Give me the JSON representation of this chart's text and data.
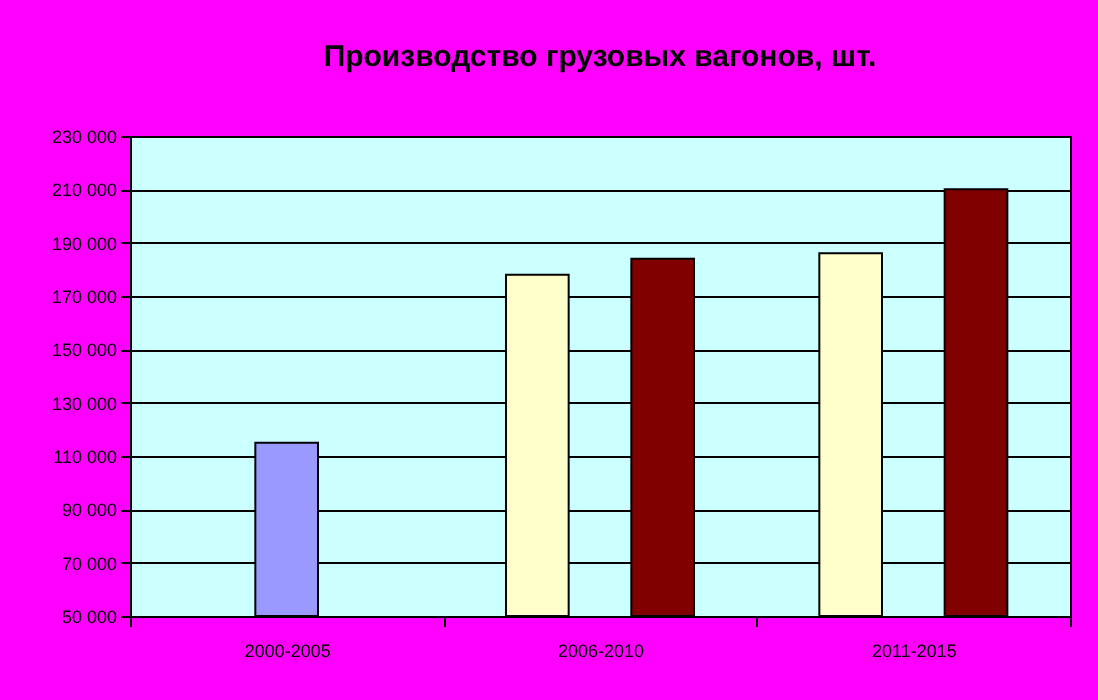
{
  "chart_data": {
    "type": "bar",
    "title": "Производство грузовых вагонов, шт.",
    "categories": [
      "2000-2005",
      "2006-2010",
      "2011-2015"
    ],
    "series": [
      {
        "color": "#9999ff",
        "values": [
          115000,
          null,
          null
        ]
      },
      {
        "color": "#ffffcc",
        "values": [
          null,
          178000,
          186000
        ]
      },
      {
        "color": "#800000",
        "values": [
          null,
          184000,
          210000
        ]
      }
    ],
    "ylim": [
      50000,
      230000
    ],
    "yticks": [
      50000,
      70000,
      90000,
      110000,
      130000,
      150000,
      170000,
      190000,
      210000,
      230000
    ],
    "grid": "y"
  }
}
